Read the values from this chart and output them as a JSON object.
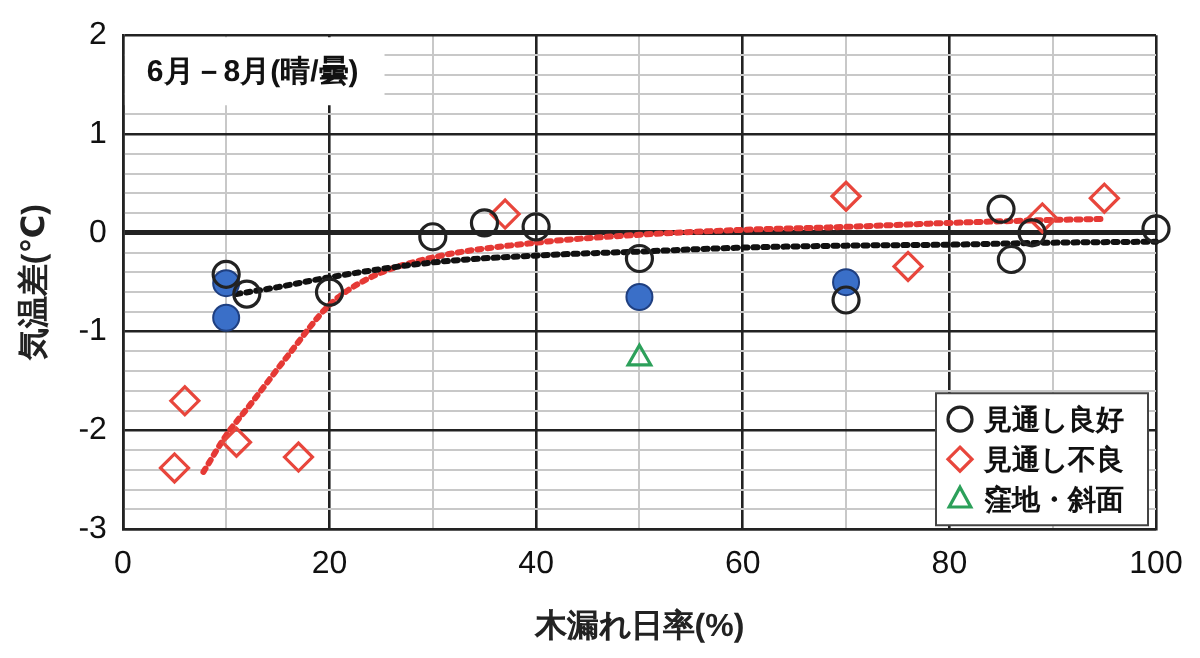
{
  "chart_data": {
    "type": "scatter",
    "title": "6月－8月(晴/曇)",
    "xlabel": "木漏れ日率(%)",
    "ylabel": "気温差(℃)",
    "xlim": [
      0,
      100
    ],
    "ylim": [
      -3,
      2
    ],
    "xticks": [
      0,
      {
        "value": 10,
        "label": null
      },
      20,
      {
        "value": 30,
        "label": null
      },
      40,
      {
        "value": 50,
        "label": null
      },
      60,
      {
        "value": 70,
        "label": null
      },
      80,
      {
        "value": 90,
        "label": null
      },
      100
    ],
    "yticks": [
      -3,
      {
        "value": -2.8,
        "label": null
      },
      {
        "value": -2.6,
        "label": null
      },
      {
        "value": -2.4,
        "label": null
      },
      {
        "value": -2.2,
        "label": null
      },
      -2,
      {
        "value": -1.8,
        "label": null
      },
      {
        "value": -1.6,
        "label": null
      },
      {
        "value": -1.4,
        "label": null
      },
      {
        "value": -1.2,
        "label": null
      },
      -1,
      {
        "value": -0.8,
        "label": null
      },
      {
        "value": -0.6,
        "label": null
      },
      {
        "value": -0.4,
        "label": null
      },
      {
        "value": -0.2,
        "label": null
      },
      0,
      {
        "value": 0.2,
        "label": null
      },
      {
        "value": 0.4,
        "label": null
      },
      {
        "value": 0.6,
        "label": null
      },
      {
        "value": 0.8,
        "label": null
      },
      1,
      {
        "value": 1.2,
        "label": null
      },
      {
        "value": 1.4,
        "label": null
      },
      {
        "value": 1.6,
        "label": null
      },
      {
        "value": 1.8,
        "label": null
      },
      2
    ],
    "grid": true,
    "legend": "bottom right",
    "series": [
      {
        "name": "見通し良好",
        "marker": "circle",
        "color": "#222222",
        "x": [
          10,
          12,
          20,
          30,
          35,
          40,
          50,
          70,
          85,
          86,
          88,
          100
        ],
        "values": [
          -0.42,
          -0.62,
          -0.6,
          -0.04,
          0.1,
          0.06,
          -0.26,
          -0.68,
          0.24,
          -0.27,
          0.0,
          0.04
        ]
      },
      {
        "name": "見通し不良",
        "marker": "diamond",
        "color": "#e8463c",
        "x": [
          5,
          6,
          11,
          17,
          37,
          70,
          76,
          89,
          95
        ],
        "values": [
          -2.38,
          -1.7,
          -2.12,
          -2.27,
          0.19,
          0.37,
          -0.34,
          0.15,
          0.35
        ]
      },
      {
        "name": "窪地・斜面",
        "marker": "triangle",
        "color": "#2ca05a",
        "x": [
          50
        ],
        "values": [
          -1.27
        ]
      },
      {
        "marker": "circle",
        "color": "#3a6fc8",
        "x": [
          10,
          10,
          50,
          70
        ],
        "values": [
          -0.51,
          -0.86,
          -0.65,
          -0.5
        ]
      },
      {
        "type": "line",
        "marker": "none",
        "line_style": "dotted",
        "color": "#111111",
        "x": [
          11,
          15,
          20,
          30,
          40,
          50,
          60,
          70,
          80,
          90,
          100
        ],
        "values": [
          -0.62,
          -0.55,
          -0.45,
          -0.3,
          -0.23,
          -0.19,
          -0.15,
          -0.13,
          -0.12,
          -0.1,
          -0.09
        ]
      },
      {
        "type": "line",
        "marker": "none",
        "line_style": "dotted",
        "color": "#e53935",
        "x": [
          7.8,
          10,
          12.4,
          16,
          20,
          24,
          30,
          40,
          50,
          60,
          70,
          80,
          90,
          95
        ],
        "values": [
          -2.42,
          -2.05,
          -1.73,
          -1.24,
          -0.73,
          -0.45,
          -0.25,
          -0.1,
          -0.02,
          0.03,
          0.06,
          0.1,
          0.13,
          0.14
        ]
      }
    ]
  }
}
